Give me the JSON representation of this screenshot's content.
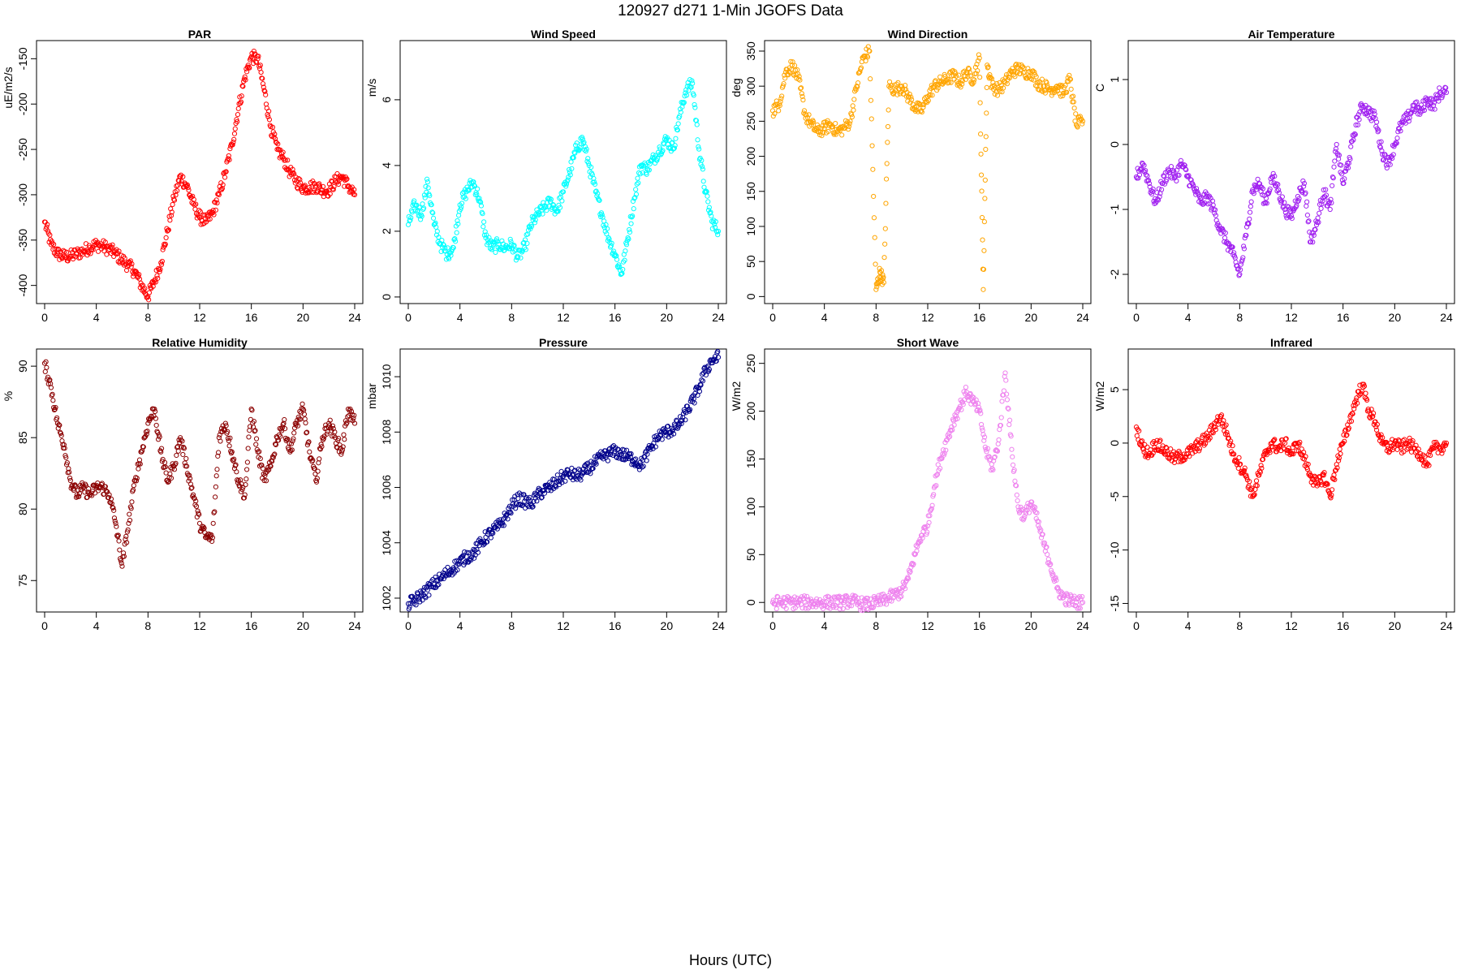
{
  "figure": {
    "title": "120927   d271   1-Min  JGOFS Data",
    "xlabel": "Hours (UTC)"
  },
  "chart_data": [
    {
      "type": "scatter",
      "title": "PAR",
      "ylabel": "uE/m2/s",
      "color": "#ff0000",
      "xlim": [
        0,
        24
      ],
      "ylim": [
        -420,
        -130
      ],
      "xticks": [
        0,
        4,
        8,
        12,
        16,
        20,
        24
      ],
      "yticks": [
        -400,
        -350,
        -300,
        -250,
        -200,
        -150
      ],
      "series": [
        {
          "x": [
            0,
            0.5,
            1,
            1.5,
            2,
            2.5,
            3,
            3.5,
            4,
            4.5,
            5,
            5.5,
            6,
            6.5,
            7,
            7.5,
            8,
            8.5,
            9,
            9.5,
            10,
            10.5,
            11,
            11.5,
            12,
            12.5,
            13,
            13.5,
            14,
            14.5,
            15,
            15.5,
            16,
            16.5,
            17,
            17.5,
            18,
            18.5,
            19,
            19.5,
            20,
            20.5,
            21,
            21.5,
            22,
            22.5,
            23,
            23.5,
            24
          ],
          "y": [
            -330,
            -355,
            -365,
            -368,
            -368,
            -365,
            -362,
            -358,
            -355,
            -357,
            -360,
            -365,
            -372,
            -378,
            -385,
            -400,
            -412,
            -395,
            -375,
            -340,
            -305,
            -280,
            -290,
            -310,
            -325,
            -330,
            -320,
            -300,
            -275,
            -245,
            -205,
            -170,
            -148,
            -150,
            -185,
            -225,
            -250,
            -260,
            -275,
            -285,
            -292,
            -292,
            -290,
            -295,
            -295,
            -285,
            -280,
            -290,
            -300
          ]
        }
      ]
    },
    {
      "type": "scatter",
      "title": "Wind Speed",
      "ylabel": "m/s",
      "color": "#00ffff",
      "xlim": [
        0,
        24
      ],
      "ylim": [
        -0.2,
        7.8
      ],
      "xticks": [
        0,
        4,
        8,
        12,
        16,
        20,
        24
      ],
      "yticks": [
        0,
        2,
        4,
        6
      ],
      "series": [
        {
          "x": [
            0,
            0.5,
            1,
            1.5,
            2,
            2.5,
            3,
            3.5,
            4,
            4.5,
            5,
            5.5,
            6,
            6.5,
            7,
            7.5,
            8,
            8.5,
            9,
            9.5,
            10,
            10.5,
            11,
            11.5,
            12,
            12.5,
            13,
            13.5,
            14,
            14.5,
            15,
            15.5,
            16,
            16.5,
            17,
            17.5,
            18,
            18.5,
            19,
            19.5,
            20,
            20.5,
            21,
            21.5,
            22,
            22.5,
            23,
            23.5,
            24
          ],
          "y": [
            2.2,
            2.8,
            2.5,
            3.5,
            2.2,
            1.6,
            1.3,
            1.5,
            2.8,
            3.2,
            3.5,
            3.0,
            1.8,
            1.5,
            1.6,
            1.5,
            1.6,
            1.2,
            1.5,
            2.2,
            2.5,
            2.7,
            2.9,
            2.6,
            3.2,
            3.8,
            4.5,
            4.8,
            4.0,
            3.2,
            2.5,
            1.8,
            1.3,
            0.7,
            1.8,
            3.0,
            4.0,
            3.9,
            4.2,
            4.5,
            4.8,
            4.5,
            5.5,
            6.3,
            6.5,
            4.5,
            3.2,
            2.3,
            2.0
          ]
        }
      ]
    },
    {
      "type": "scatter",
      "title": "Wind Direction",
      "ylabel": "deg",
      "color": "#ffa500",
      "xlim": [
        0,
        24
      ],
      "ylim": [
        -10,
        365
      ],
      "xticks": [
        0,
        4,
        8,
        12,
        16,
        20,
        24
      ],
      "yticks": [
        0,
        50,
        100,
        150,
        200,
        250,
        300,
        350
      ],
      "series": [
        {
          "x": [
            0,
            0.5,
            1,
            1.5,
            2,
            2.5,
            3,
            3.5,
            4,
            4.5,
            5,
            5.5,
            6,
            6.5,
            7,
            7.5,
            8,
            8.3,
            8.6,
            9,
            9.5,
            10,
            10.5,
            11,
            11.5,
            12,
            12.5,
            13,
            13.5,
            14,
            14.5,
            15,
            15.5,
            16,
            16.3,
            16.6,
            17,
            17.5,
            18,
            18.5,
            19,
            19.5,
            20,
            20.5,
            21,
            21.5,
            22,
            22.5,
            23,
            23.5,
            24
          ],
          "y": [
            265,
            275,
            320,
            330,
            310,
            260,
            245,
            235,
            240,
            245,
            235,
            240,
            250,
            300,
            340,
            350,
            10,
            35,
            20,
            300,
            295,
            300,
            285,
            270,
            265,
            285,
            300,
            305,
            310,
            315,
            305,
            320,
            310,
            340,
            10,
            330,
            300,
            295,
            305,
            320,
            325,
            320,
            320,
            305,
            300,
            295,
            300,
            290,
            310,
            245,
            250
          ]
        }
      ]
    },
    {
      "type": "scatter",
      "title": "Air Temperature",
      "ylabel": "C",
      "color": "#a020f0",
      "xlim": [
        0,
        24
      ],
      "ylim": [
        -2.45,
        1.6
      ],
      "xticks": [
        0,
        4,
        8,
        12,
        16,
        20,
        24
      ],
      "yticks": [
        -2,
        -1,
        0,
        1
      ],
      "series": [
        {
          "x": [
            0,
            0.5,
            1,
            1.5,
            2,
            2.5,
            3,
            3.5,
            4,
            4.5,
            5,
            5.5,
            6,
            6.5,
            7,
            7.5,
            8,
            8.5,
            9,
            9.5,
            10,
            10.5,
            11,
            11.5,
            12,
            12.5,
            13,
            13.5,
            14,
            14.5,
            15,
            15.5,
            16,
            16.5,
            17,
            17.5,
            18,
            18.5,
            19,
            19.5,
            20,
            20.5,
            21,
            21.5,
            22,
            22.5,
            23,
            23.5,
            24
          ],
          "y": [
            -0.5,
            -0.3,
            -0.6,
            -0.9,
            -0.6,
            -0.4,
            -0.5,
            -0.3,
            -0.5,
            -0.7,
            -0.9,
            -0.8,
            -1.0,
            -1.3,
            -1.5,
            -1.7,
            -2.0,
            -1.4,
            -0.7,
            -0.6,
            -0.9,
            -0.5,
            -0.7,
            -1.0,
            -1.1,
            -0.8,
            -0.6,
            -1.5,
            -1.2,
            -0.7,
            -1.0,
            0.0,
            -0.6,
            -0.2,
            0.3,
            0.6,
            0.5,
            0.4,
            -0.1,
            -0.3,
            0.0,
            0.3,
            0.4,
            0.6,
            0.5,
            0.7,
            0.6,
            0.8,
            0.8
          ]
        }
      ]
    },
    {
      "type": "scatter",
      "title": "Relative Humidity",
      "ylabel": "%",
      "color": "#8b0000",
      "xlim": [
        0,
        24
      ],
      "ylim": [
        72.8,
        91.2
      ],
      "xticks": [
        0,
        4,
        8,
        12,
        16,
        20,
        24
      ],
      "yticks": [
        75,
        80,
        85,
        90
      ],
      "series": [
        {
          "x": [
            0,
            0.5,
            1,
            1.5,
            2,
            2.5,
            3,
            3.5,
            4,
            4.5,
            5,
            5.5,
            6,
            6.5,
            7,
            7.5,
            8,
            8.5,
            9,
            9.5,
            10,
            10.5,
            11,
            11.5,
            12,
            12.5,
            13,
            13.5,
            14,
            14.5,
            15,
            15.5,
            16,
            16.5,
            17,
            17.5,
            18,
            18.5,
            19,
            19.5,
            20,
            20.5,
            21,
            21.5,
            22,
            22.5,
            23,
            23.5,
            24
          ],
          "y": [
            90.2,
            88.5,
            86,
            84.5,
            82,
            81,
            81.5,
            81,
            81.5,
            81.5,
            81,
            79,
            76,
            79,
            82,
            84,
            86,
            87,
            84,
            82,
            83,
            85,
            83,
            81,
            79,
            78,
            78,
            85,
            86,
            84,
            82,
            81,
            87,
            84,
            82,
            83,
            85,
            86,
            84,
            86,
            87,
            84,
            82,
            85,
            86,
            85,
            84,
            87,
            86
          ]
        }
      ]
    },
    {
      "type": "scatter",
      "title": "Pressure",
      "ylabel": "mbar",
      "color": "#00008b",
      "xlim": [
        0,
        24
      ],
      "ylim": [
        1001.5,
        1011
      ],
      "xticks": [
        0,
        4,
        8,
        12,
        16,
        20,
        24
      ],
      "yticks": [
        1002,
        1004,
        1006,
        1008,
        1010
      ],
      "series": [
        {
          "x": [
            0,
            0.5,
            1,
            1.5,
            2,
            2.5,
            3,
            3.5,
            4,
            4.5,
            5,
            5.5,
            6,
            6.5,
            7,
            7.5,
            8,
            8.5,
            9,
            9.5,
            10,
            10.5,
            11,
            11.5,
            12,
            12.5,
            13,
            13.5,
            14,
            14.5,
            15,
            15.5,
            16,
            16.5,
            17,
            17.5,
            18,
            18.5,
            19,
            19.5,
            20,
            20.5,
            21,
            21.5,
            22,
            22.5,
            23,
            23.5,
            24
          ],
          "y": [
            1001.8,
            1001.9,
            1002.1,
            1002.3,
            1002.5,
            1002.7,
            1002.9,
            1003.1,
            1003.3,
            1003.5,
            1003.6,
            1003.9,
            1004.2,
            1004.4,
            1004.6,
            1004.9,
            1005.3,
            1005.6,
            1005.5,
            1005.4,
            1005.7,
            1005.9,
            1006.0,
            1006.2,
            1006.4,
            1006.5,
            1006.4,
            1006.5,
            1006.7,
            1006.9,
            1007.1,
            1007.2,
            1007.3,
            1007.2,
            1007.1,
            1007.0,
            1006.8,
            1007.2,
            1007.6,
            1007.9,
            1008.0,
            1008.1,
            1008.3,
            1008.7,
            1009.1,
            1009.6,
            1010.2,
            1010.6,
            1010.7
          ]
        }
      ]
    },
    {
      "type": "scatter",
      "title": "Short Wave",
      "ylabel": "W/m2",
      "color": "#ee82ee",
      "xlim": [
        0,
        24
      ],
      "ylim": [
        -10,
        265
      ],
      "xticks": [
        0,
        4,
        8,
        12,
        16,
        20,
        24
      ],
      "yticks": [
        0,
        50,
        100,
        150,
        200,
        250
      ],
      "series": [
        {
          "x": [
            0,
            0.5,
            1,
            1.5,
            2,
            2.5,
            3,
            3.5,
            4,
            4.5,
            5,
            5.5,
            6,
            6.5,
            7,
            7.5,
            8,
            8.5,
            9,
            9.5,
            10,
            10.5,
            11,
            11.5,
            12,
            12.5,
            13,
            13.5,
            14,
            14.5,
            15,
            15.5,
            16,
            16.5,
            17,
            17.5,
            18,
            18.5,
            19,
            19.5,
            20,
            20.5,
            21,
            21.5,
            22,
            22.5,
            23,
            23.5,
            24
          ],
          "y": [
            0,
            0,
            0,
            0,
            0,
            0,
            0,
            0,
            0,
            0,
            0,
            0,
            2,
            0,
            -2,
            -2,
            0,
            2,
            5,
            8,
            12,
            25,
            50,
            70,
            80,
            120,
            150,
            170,
            190,
            205,
            220,
            210,
            200,
            160,
            140,
            170,
            240,
            160,
            100,
            90,
            105,
            85,
            60,
            40,
            15,
            5,
            2,
            0,
            0
          ]
        }
      ]
    },
    {
      "type": "scatter",
      "title": "Infrared",
      "ylabel": "W/m2",
      "color": "#ff0000",
      "xlim": [
        0,
        24
      ],
      "ylim": [
        -15.8,
        8.8
      ],
      "xticks": [
        0,
        4,
        8,
        12,
        16,
        20,
        24
      ],
      "yticks": [
        -15,
        -10,
        -5,
        0,
        5
      ],
      "series": [
        {
          "x": [
            0,
            0.5,
            1,
            1.5,
            2,
            2.5,
            3,
            3.5,
            4,
            4.5,
            5,
            5.5,
            6,
            6.5,
            7,
            7.5,
            8,
            8.5,
            9,
            9.5,
            10,
            10.5,
            11,
            11.5,
            12,
            12.5,
            13,
            13.5,
            14,
            14.5,
            15,
            15.5,
            16,
            16.5,
            17,
            17.5,
            18,
            18.5,
            19,
            19.5,
            20,
            20.5,
            21,
            21.5,
            22,
            22.5,
            23,
            23.5,
            24
          ],
          "y": [
            1.5,
            -0.5,
            -1.0,
            0,
            -0.5,
            -1.0,
            -1.5,
            -1.2,
            -1.0,
            -0.5,
            0,
            0.5,
            1.5,
            2.5,
            1.0,
            -1.0,
            -2.0,
            -3.0,
            -5.0,
            -3.0,
            -1.0,
            0,
            -0.5,
            0,
            -1.0,
            0,
            -1.5,
            -3.0,
            -4.0,
            -3.0,
            -5.0,
            -2.0,
            0,
            2.0,
            4.0,
            5.5,
            3.0,
            2.0,
            0,
            -0.5,
            0,
            -0.5,
            0,
            -0.5,
            -1.0,
            -2.0,
            -0.5,
            -0.5,
            0
          ]
        }
      ]
    }
  ]
}
